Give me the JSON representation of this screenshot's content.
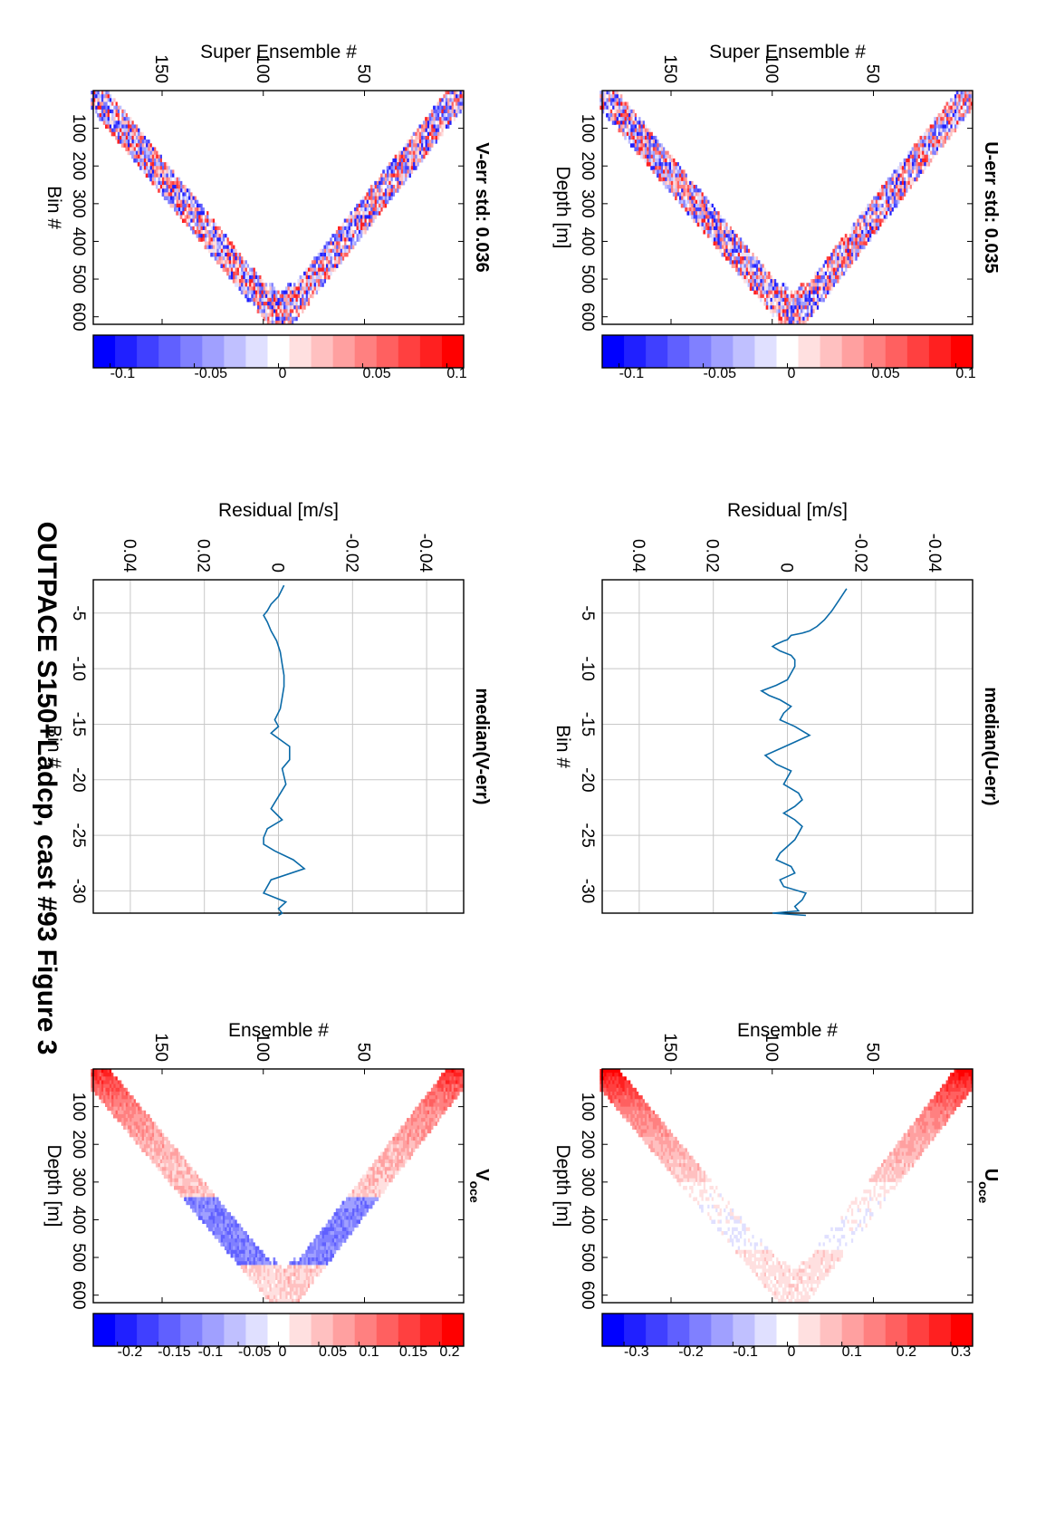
{
  "title": "OUTPACE S150+Ladcp, cast #93  Figure 3",
  "chart_data": [
    {
      "id": "u-err",
      "type": "heatmap",
      "title": "U-err std: 0.035",
      "xlabel": "Super Ensemble #",
      "ylabel": "Depth [m]",
      "xlim": [
        1,
        184
      ],
      "ylim": [
        0,
        620
      ],
      "xticks": [
        50,
        100,
        150
      ],
      "yticks": [
        100,
        200,
        300,
        400,
        500,
        600
      ],
      "colormap": [
        "#ff0000",
        "#ff2020",
        "#ff4040",
        "#ff6060",
        "#ff8080",
        "#ffa0a0",
        "#ffc0c0",
        "#ffe0e0",
        "#ffffff",
        "#e0e0ff",
        "#c0c0ff",
        "#a0a0ff",
        "#8080ff",
        "#6060ff",
        "#4040ff",
        "#2020ff",
        "#0000ff"
      ],
      "colorbar": {
        "clim": [
          -0.11,
          0.11
        ],
        "ticks": [
          0.1,
          0.05,
          0,
          -0.05,
          -0.1
        ]
      },
      "field": {
        "pattern": "noise",
        "turn_x": 89,
        "max_depth": 610,
        "band": 100,
        "amp": 0.06
      }
    },
    {
      "id": "median-u",
      "type": "line",
      "title": "median(U-err)",
      "xlabel": "Residual [m/s]",
      "ylabel": "Bin #",
      "xlim": [
        -0.05,
        0.05
      ],
      "ylim": [
        -32,
        -2
      ],
      "xticks": [
        -0.04,
        -0.02,
        0,
        0.02,
        0.04
      ],
      "yticks": [
        -5,
        -10,
        -15,
        -20,
        -25,
        -30
      ],
      "grid": true,
      "series": [
        {
          "x": [
            -0.016,
            -0.014,
            -0.012,
            -0.01,
            -0.008,
            -0.006,
            -0.004,
            -0.001,
            -0.0005,
            0.0,
            0.001,
            0.003,
            0.004,
            0.002,
            -0.001,
            -0.002,
            -0.002,
            -0.001,
            0.0,
            0.003,
            0.007,
            0.005,
            0.002,
            -0.001,
            0.001,
            0.002,
            -0.002,
            -0.006,
            -0.002,
            0.002,
            0.006,
            0.003,
            -0.001,
            0.0,
            0.001,
            -0.003,
            -0.004,
            -0.002,
            0.001,
            -0.002,
            -0.004,
            -0.003,
            -0.002,
            0.0,
            0.002,
            0.003,
            -0.001,
            -0.002,
            0.002,
            0.001,
            -0.005,
            -0.004,
            -0.002,
            -0.003,
            0.004,
            -0.005
          ],
          "y": [
            -2.8,
            -3.8,
            -4.8,
            -5.6,
            -6.2,
            -6.6,
            -6.8,
            -7.0,
            -7.2,
            -7.4,
            -7.5,
            -7.8,
            -8.0,
            -8.4,
            -8.8,
            -9.2,
            -9.8,
            -10.4,
            -11.0,
            -11.5,
            -12.0,
            -12.4,
            -12.8,
            -13.4,
            -14.0,
            -14.6,
            -15.2,
            -16.0,
            -16.6,
            -17.2,
            -17.8,
            -18.6,
            -19.2,
            -19.8,
            -20.4,
            -21.2,
            -21.8,
            -22.4,
            -23.0,
            -23.6,
            -24.2,
            -24.8,
            -25.4,
            -26.0,
            -26.6,
            -27.2,
            -27.8,
            -28.4,
            -29.0,
            -29.6,
            -30.2,
            -30.8,
            -31.4,
            -31.8,
            -32.0,
            -32.2
          ]
        }
      ]
    },
    {
      "id": "u-oce",
      "type": "heatmap",
      "title": "U",
      "title_subscript": "oce",
      "xlabel": "Ensemble #",
      "ylabel": "Depth [m]",
      "xlim": [
        1,
        184
      ],
      "ylim": [
        0,
        620
      ],
      "xticks": [
        50,
        100,
        150
      ],
      "yticks": [
        100,
        200,
        300,
        400,
        500,
        600
      ],
      "colormap": [
        "#ff0000",
        "#ff2020",
        "#ff4040",
        "#ff6060",
        "#ff8080",
        "#ffa0a0",
        "#ffc0c0",
        "#ffe0e0",
        "#ffffff",
        "#e0e0ff",
        "#c0c0ff",
        "#a0a0ff",
        "#8080ff",
        "#6060ff",
        "#4040ff",
        "#2020ff",
        "#0000ff"
      ],
      "colorbar": {
        "clim": [
          -0.34,
          0.34
        ],
        "ticks": [
          0.3,
          0.2,
          0.1,
          0,
          -0.1,
          -0.2,
          -0.3
        ]
      },
      "field": {
        "pattern": "u_profile",
        "turn_x": 89,
        "max_depth": 610,
        "band": 110,
        "amp": 0.03
      }
    },
    {
      "id": "v-err",
      "type": "heatmap",
      "title": "V-err std: 0.036",
      "xlabel": "Super Ensemble #",
      "ylabel": "Bin #",
      "xlim": [
        1,
        184
      ],
      "ylim": [
        0,
        620
      ],
      "xticks": [
        50,
        100,
        150
      ],
      "yticks": [
        100,
        200,
        300,
        400,
        500,
        600
      ],
      "colormap": [
        "#ff0000",
        "#ff2020",
        "#ff4040",
        "#ff6060",
        "#ff8080",
        "#ffa0a0",
        "#ffc0c0",
        "#ffe0e0",
        "#ffffff",
        "#e0e0ff",
        "#c0c0ff",
        "#a0a0ff",
        "#8080ff",
        "#6060ff",
        "#4040ff",
        "#2020ff",
        "#0000ff"
      ],
      "colorbar": {
        "clim": [
          -0.11,
          0.11
        ],
        "ticks": [
          0.1,
          0.05,
          0,
          -0.05,
          -0.1
        ]
      },
      "field": {
        "pattern": "noise",
        "turn_x": 91,
        "max_depth": 610,
        "band": 100,
        "amp": 0.06
      }
    },
    {
      "id": "median-v",
      "type": "line",
      "title": "median(V-err)",
      "xlabel": "Residual [m/s]",
      "ylabel": "Bin #",
      "xlim": [
        -0.05,
        0.05
      ],
      "ylim": [
        -32,
        -2
      ],
      "xticks": [
        -0.04,
        -0.02,
        0,
        0.02,
        0.04
      ],
      "yticks": [
        -5,
        -10,
        -15,
        -20,
        -25,
        -30
      ],
      "grid": true,
      "series": [
        {
          "x": [
            -0.0015,
            0.0,
            0.002,
            0.003,
            0.004,
            0.003,
            0.002,
            0.0005,
            -0.0005,
            -0.001,
            -0.0015,
            -0.0015,
            -0.001,
            -0.0005,
            0.001,
            0.0,
            0.002,
            -0.003,
            -0.003,
            -0.001,
            -0.002,
            0.0,
            0.002,
            -0.001,
            0.003,
            0.004,
            0.004,
            0.001,
            -0.004,
            -0.007,
            0.002,
            0.004,
            -0.002,
            0.0,
            -0.001,
            0.0
          ],
          "y": [
            -2.5,
            -3.5,
            -4.2,
            -4.8,
            -5.2,
            -5.8,
            -6.6,
            -7.5,
            -8.5,
            -9.6,
            -10.6,
            -11.6,
            -12.6,
            -13.6,
            -14.6,
            -15.2,
            -15.8,
            -17.0,
            -18.2,
            -19.0,
            -20.4,
            -21.5,
            -22.6,
            -23.6,
            -24.4,
            -25.2,
            -25.8,
            -26.4,
            -27.2,
            -28.0,
            -29.0,
            -30.2,
            -31.0,
            -31.6,
            -32.0,
            -32.2
          ]
        }
      ]
    },
    {
      "id": "v-oce",
      "type": "heatmap",
      "title": "V",
      "title_subscript": "oce",
      "xlabel": "Ensemble #",
      "ylabel": "Depth [m]",
      "xlim": [
        1,
        184
      ],
      "ylim": [
        0,
        620
      ],
      "xticks": [
        50,
        100,
        150
      ],
      "yticks": [
        100,
        200,
        300,
        400,
        500,
        600
      ],
      "colormap": [
        "#ff0000",
        "#ff2020",
        "#ff4040",
        "#ff6060",
        "#ff8080",
        "#ffa0a0",
        "#ffc0c0",
        "#ffe0e0",
        "#ffffff",
        "#e0e0ff",
        "#c0c0ff",
        "#a0a0ff",
        "#8080ff",
        "#6060ff",
        "#4040ff",
        "#2020ff",
        "#0000ff"
      ],
      "colorbar": {
        "clim": [
          -0.23,
          0.23
        ],
        "ticks": [
          0.2,
          0.15,
          0.1,
          0.05,
          0,
          -0.05,
          -0.1,
          -0.15,
          -0.2
        ]
      },
      "field": {
        "pattern": "v_profile",
        "turn_x": 89,
        "max_depth": 610,
        "band": 110,
        "amp": 0.03
      }
    }
  ]
}
